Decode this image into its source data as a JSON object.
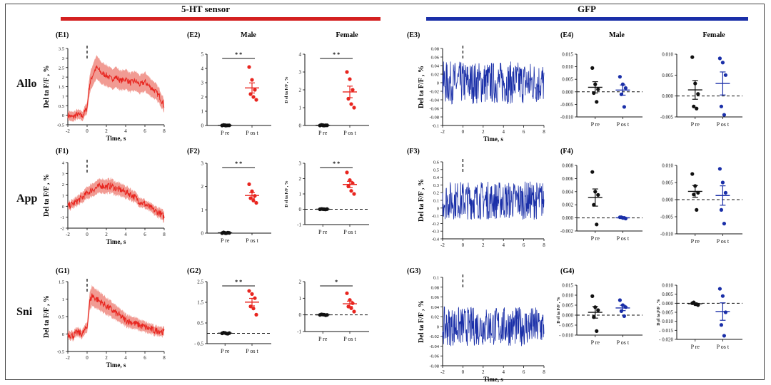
{
  "headers": [
    {
      "label": "5-HT sensor",
      "color": "#d42020"
    },
    {
      "label": "GFP",
      "color": "#1a2fa8"
    }
  ],
  "row_labels": [
    "Allo",
    "App",
    "Sni"
  ],
  "colors": {
    "sensor": "#e8251f",
    "sensor_band": "#ef8a80",
    "gfp": "#1a2fa8",
    "black": "#111111"
  },
  "chart_data": [
    {
      "id": "E1",
      "type": "line",
      "color": "sensor",
      "band": true,
      "xlabel": "Time, s",
      "ylabel": "Del ta F/F , %",
      "xlim": [
        -2,
        8
      ],
      "ylim": [
        -0.5,
        3.5
      ],
      "xticks": [
        "-2",
        "0",
        "2",
        "4",
        "6",
        "8"
      ],
      "yticks": [
        "-0.5",
        "0",
        "0.5",
        "1",
        "1.5",
        "2",
        "2.5",
        "3",
        "3.5"
      ],
      "x": [
        -2,
        -1.5,
        -1,
        -0.5,
        0,
        0.25,
        0.5,
        0.75,
        1,
        1.5,
        2,
        2.5,
        3,
        3.5,
        4,
        4.5,
        5,
        5.5,
        6,
        6.5,
        7,
        7.5,
        8
      ],
      "y": [
        0.0,
        -0.1,
        0.05,
        -0.05,
        0.4,
        1.6,
        2.0,
        2.3,
        2.5,
        2.2,
        2.1,
        1.9,
        2.0,
        1.8,
        1.9,
        1.7,
        1.8,
        1.6,
        1.75,
        1.5,
        1.3,
        1.0,
        0.5
      ],
      "noise": 0.15
    },
    {
      "id": "E2",
      "type": "scatter",
      "title": "Male",
      "ylim": [
        0,
        5
      ],
      "yticks": [
        "0",
        "1",
        "2",
        "3",
        "4",
        "5"
      ],
      "categories": [
        "P re",
        "P os t"
      ],
      "pre": [
        0.0,
        0.02,
        0.01,
        0.03,
        0.0,
        0.01
      ],
      "post": [
        4.1,
        3.2,
        2.5,
        2.2,
        2.0,
        1.8
      ],
      "post_color": "sensor",
      "sig": "* *",
      "zero_line": false
    },
    {
      "id": "E2b",
      "type": "scatter",
      "title": "Female",
      "ylabel": "D el ta F/F , %",
      "ylim": [
        0,
        4
      ],
      "yticks": [
        "0",
        "1",
        "2",
        "3",
        "4"
      ],
      "categories": [
        "P re",
        "P os t"
      ],
      "pre": [
        0.0,
        0.02,
        0.01,
        0.03,
        0.0,
        0.01
      ],
      "post": [
        3.0,
        2.6,
        2.0,
        1.5,
        1.2,
        1.0
      ],
      "post_color": "sensor",
      "sig": "* *",
      "zero_line": false
    },
    {
      "id": "E3",
      "type": "line",
      "color": "gfp",
      "xlabel": "Time, s",
      "ylabel": "Del ta F/F , %",
      "xlim": [
        -2,
        8
      ],
      "ylim": [
        -0.1,
        0.08
      ],
      "xticks": [
        "-2",
        "0",
        "2",
        "4",
        "6",
        "8"
      ],
      "yticks": [
        "-0.1",
        "-0.08",
        "-0.06",
        "-0.04",
        "-0.02",
        "0",
        "0.02",
        "0.04",
        "0.06",
        "0.08"
      ],
      "x": [
        -2,
        8
      ],
      "y": [
        0,
        0
      ],
      "noise": 0.05
    },
    {
      "id": "E4",
      "type": "scatter",
      "title": "Male",
      "ylim": [
        -0.01,
        0.015
      ],
      "yticks": [
        "-0.010",
        "-0.005",
        "0.000",
        "0.005",
        "0.010",
        "0.015"
      ],
      "categories": [
        "P re",
        "P os t"
      ],
      "pre": [
        0.0095,
        0.003,
        0.001,
        -0.0005,
        -0.004
      ],
      "post": [
        0.006,
        0.003,
        0.0015,
        -0.001,
        -0.006
      ],
      "post_color": "gfp",
      "sig": "",
      "zero_line": true
    },
    {
      "id": "E4b",
      "type": "scatter",
      "title": "Female",
      "ylim": [
        -0.005,
        0.01
      ],
      "yticks": [
        "-0.005",
        "0.000",
        "0.005",
        "0.010"
      ],
      "categories": [
        "P re",
        "P os t"
      ],
      "pre": [
        0.0093,
        0.003,
        0.0005,
        -0.0025,
        -0.003
      ],
      "post": [
        0.009,
        0.008,
        0.005,
        -0.0025,
        -0.0045
      ],
      "post_color": "gfp",
      "sig": "",
      "zero_line": true
    },
    {
      "id": "F1",
      "type": "line",
      "color": "sensor",
      "band": true,
      "xlabel": "Time, s",
      "ylabel": "Del ta F/F , %",
      "xlim": [
        -2,
        8
      ],
      "ylim": [
        -2,
        4
      ],
      "xticks": [
        "-2",
        "0",
        "2",
        "4",
        "6",
        "8"
      ],
      "yticks": [
        "-2",
        "-1",
        "0",
        "1",
        "2",
        "3",
        "4"
      ],
      "x": [
        -2,
        -1.5,
        -1,
        -0.5,
        0,
        0.5,
        1,
        1.5,
        2,
        2.5,
        3,
        3.5,
        4,
        4.5,
        5,
        5.5,
        6,
        6.5,
        7,
        7.5,
        8
      ],
      "y": [
        0.0,
        0.2,
        0.5,
        0.8,
        1.2,
        1.5,
        1.7,
        1.9,
        1.8,
        1.9,
        1.6,
        1.5,
        1.3,
        1.1,
        0.8,
        0.4,
        0.2,
        -0.1,
        -0.4,
        -0.6,
        -1.0
      ],
      "noise": 0.3
    },
    {
      "id": "F2",
      "type": "scatter",
      "ylim": [
        0,
        3
      ],
      "yticks": [
        "0",
        "1",
        "2",
        "3"
      ],
      "categories": [
        "P re",
        "P os t"
      ],
      "pre": [
        0.0,
        0.01,
        0.02,
        0.03,
        0.0,
        0.01
      ],
      "post": [
        2.1,
        1.8,
        1.6,
        1.5,
        1.4,
        1.3
      ],
      "post_color": "sensor",
      "sig": "* *",
      "zero_line": false
    },
    {
      "id": "F2b",
      "type": "scatter",
      "ylabel": "D el ta F/F , %",
      "ylim": [
        -1,
        3
      ],
      "yticks": [
        "-1",
        "0",
        "1",
        "2",
        "3"
      ],
      "categories": [
        "P re",
        "P os t"
      ],
      "pre": [
        0.0,
        0.01,
        -0.01,
        0.02,
        0.0,
        0.01
      ],
      "post": [
        2.4,
        1.9,
        1.7,
        1.5,
        1.2,
        1.0
      ],
      "post_color": "sensor",
      "sig": "* *",
      "zero_line": true
    },
    {
      "id": "F3",
      "type": "line",
      "color": "gfp",
      "ylabel": "Del ta F/F , %",
      "xlim": [
        -2,
        8
      ],
      "ylim": [
        -0.4,
        0.6
      ],
      "xticks": [
        "-2",
        "0",
        "2",
        "4",
        "6",
        "8"
      ],
      "yticks": [
        "-0.4",
        "-0.3",
        "-0.2",
        "-0.1",
        "0",
        "0.1",
        "0.2",
        "0.3",
        "0.4",
        "0.5",
        "0.6"
      ],
      "x": [
        -2,
        8
      ],
      "y": [
        0.1,
        0.1
      ],
      "noise": 0.25
    },
    {
      "id": "F4",
      "type": "scatter",
      "ylim": [
        -0.002,
        0.008
      ],
      "yticks": [
        "-0.002",
        "0.000",
        "0.002",
        "0.004",
        "0.006",
        "0.008"
      ],
      "categories": [
        "P re",
        "P os t"
      ],
      "pre": [
        0.007,
        0.004,
        0.0035,
        0.002,
        -0.001
      ],
      "post": [
        0.0001,
        0.0,
        -0.0001,
        0.0001,
        0.0
      ],
      "post_color": "gfp",
      "sig": "",
      "zero_line": true
    },
    {
      "id": "F4b",
      "type": "scatter",
      "ylim": [
        -0.01,
        0.01
      ],
      "yticks": [
        "-0.010",
        "-0.005",
        "0.000",
        "0.005",
        "0.010"
      ],
      "categories": [
        "P re",
        "P os t"
      ],
      "pre": [
        0.0075,
        0.004,
        0.002,
        0.0015,
        -0.003
      ],
      "post": [
        0.009,
        0.005,
        0.002,
        -0.003,
        -0.007
      ],
      "post_color": "gfp",
      "sig": "",
      "zero_line": true
    },
    {
      "id": "G1",
      "type": "line",
      "color": "sensor",
      "band": true,
      "xlabel": "Time, s",
      "ylabel": "Del ta F/F , %",
      "xlim": [
        -2,
        8
      ],
      "ylim": [
        -0.5,
        1.5
      ],
      "xticks": [
        "-2",
        "0",
        "2",
        "4",
        "6",
        "8"
      ],
      "yticks": [
        "-0.5",
        "0",
        "0.5",
        "1",
        "1.5"
      ],
      "x": [
        -2,
        -1.5,
        -1,
        -0.5,
        0,
        0.25,
        0.5,
        1,
        1.5,
        2,
        2.5,
        3,
        3.5,
        4,
        4.5,
        5,
        5.5,
        6,
        6.5,
        7,
        7.5,
        8
      ],
      "y": [
        0.0,
        -0.05,
        0.05,
        0.0,
        0.2,
        0.9,
        1.1,
        1.0,
        0.9,
        0.8,
        0.7,
        0.6,
        0.5,
        0.4,
        0.35,
        0.3,
        0.25,
        0.2,
        0.15,
        0.1,
        0.1,
        0.05
      ],
      "noise": 0.1
    },
    {
      "id": "G2",
      "type": "scatter",
      "ylim": [
        -0.5,
        2.5
      ],
      "yticks": [
        "- 0.5",
        "0.5",
        "1.5",
        "2.5"
      ],
      "categories": [
        "P re",
        "P os t"
      ],
      "pre": [
        0.0,
        0.02,
        -0.02,
        0.03,
        -0.01,
        0.01
      ],
      "post": [
        2.05,
        1.9,
        1.7,
        1.3,
        1.2,
        0.9
      ],
      "post_color": "sensor",
      "sig": "* *",
      "zero_line": true
    },
    {
      "id": "G2b",
      "type": "scatter",
      "ylim": [
        -1,
        2
      ],
      "yticks": [
        "-1",
        "0",
        "1",
        "2"
      ],
      "categories": [
        "P re",
        "P os t"
      ],
      "pre": [
        0.0,
        0.02,
        -0.02,
        0.03,
        0.01,
        0.0
      ],
      "post": [
        1.3,
        0.9,
        0.7,
        0.5,
        0.4,
        0.2
      ],
      "post_color": "sensor",
      "sig": "*",
      "zero_line": true
    },
    {
      "id": "G3",
      "type": "line",
      "color": "gfp",
      "xlabel": "Time, s",
      "ylabel": "Del ta F/F , %",
      "xlim": [
        -2,
        8
      ],
      "ylim": [
        -0.08,
        0.1
      ],
      "xticks": [
        "-2",
        "0",
        "2",
        "4",
        "6",
        "8"
      ],
      "yticks": [
        "-0.08",
        "-0.06",
        "-0.04",
        "-0.02",
        "0",
        "0.02",
        "0.04",
        "0.06",
        "0.08",
        "0.1"
      ],
      "x": [
        -2,
        8
      ],
      "y": [
        0,
        0
      ],
      "noise": 0.04
    },
    {
      "id": "G4",
      "type": "scatter",
      "ylabel": "D el ta F/F , %",
      "ylim": [
        -0.01,
        0.015
      ],
      "yticks": [
        "- 0.010",
        "- 0.005",
        "0.000",
        "0.005",
        "0.010",
        "0.015"
      ],
      "categories": [
        "P re",
        "P os t"
      ],
      "pre": [
        0.0095,
        0.004,
        0.0025,
        -0.001,
        -0.008
      ],
      "post": [
        0.0075,
        0.005,
        0.004,
        0.002,
        -0.0005
      ],
      "post_color": "gfp",
      "sig": "",
      "zero_line": true
    },
    {
      "id": "G4b",
      "type": "scatter",
      "ylabel": "D el ta F/F , %",
      "ylim": [
        -0.02,
        0.01
      ],
      "yticks": [
        "- 0.020",
        "- 0.015",
        "- 0.010",
        "- 0.005",
        "0.000",
        "0.005",
        "0.010"
      ],
      "categories": [
        "P re",
        "P os t"
      ],
      "pre": [
        0.0,
        -0.0005,
        -0.001,
        0.0005,
        -0.0005
      ],
      "post": [
        0.008,
        0.004,
        -0.005,
        -0.012,
        -0.018
      ],
      "post_color": "gfp",
      "sig": "",
      "zero_line": true
    }
  ],
  "panel_labels": [
    "(E1)",
    "(E2)",
    "(E3)",
    "(E4)",
    "(F1)",
    "(F2)",
    "(F3)",
    "(F4)",
    "(G1)",
    "(G2)",
    "(G3)",
    "(G4)"
  ],
  "group_titles": [
    "Male",
    "Female",
    "Male",
    "Female"
  ]
}
